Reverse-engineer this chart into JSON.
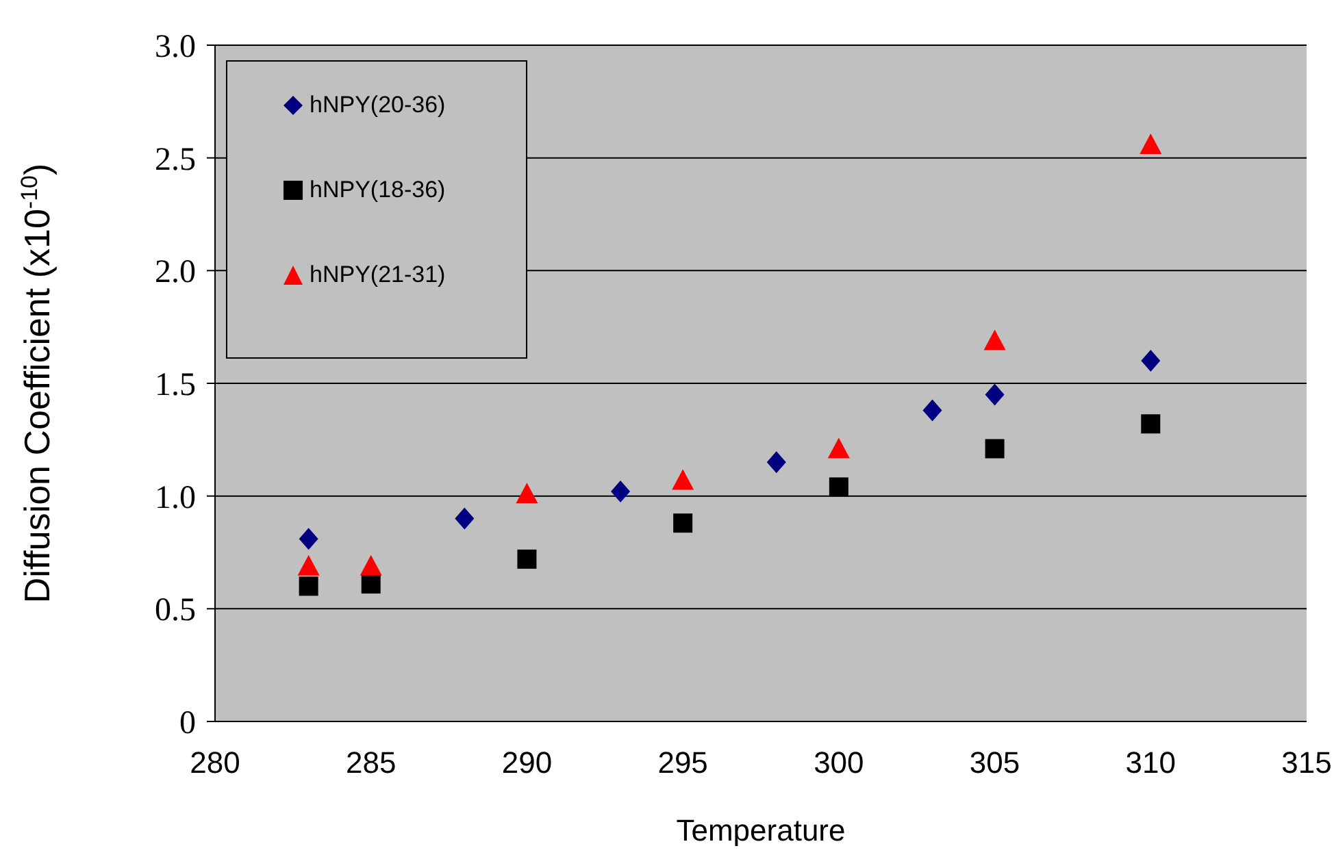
{
  "chart_data": {
    "type": "scatter",
    "xlabel": "Temperature",
    "ylabel": "Diffusion Coefficient (x10$^{-10}$)",
    "xlim": [
      280,
      315
    ],
    "xticks": [
      280,
      285,
      290,
      295,
      300,
      305,
      310,
      315
    ],
    "ylim": [
      0,
      3
    ],
    "yticks": [
      0,
      0.5,
      {
        "value": 1,
        "label": "1.0"
      },
      1.5,
      {
        "value": 2,
        "label": "2.0"
      },
      2.5,
      {
        "value": 3,
        "label": "3.0"
      }
    ],
    "grid": "y",
    "legend": "top left",
    "series": [
      {
        "name": "hNPY(20-36)",
        "color": "#000080",
        "marker": "diamond",
        "x": [
          283,
          288,
          293,
          298,
          303,
          305,
          310
        ],
        "values": [
          0.81,
          0.9,
          1.02,
          1.15,
          1.38,
          1.45,
          1.6
        ]
      },
      {
        "name": "hNPY(18-36)",
        "color": "#000000",
        "marker": "square",
        "x": [
          283,
          285,
          290,
          295,
          300,
          305,
          310
        ],
        "values": [
          0.6,
          0.61,
          0.72,
          0.88,
          1.04,
          1.21,
          1.32
        ]
      },
      {
        "name": "hNPY(21-31)",
        "color": "#ff0000",
        "marker": "triangle",
        "x": [
          283,
          285,
          290,
          295,
          300,
          305,
          310
        ],
        "values": [
          0.69,
          0.69,
          1.01,
          1.07,
          1.21,
          1.69,
          2.56
        ]
      }
    ]
  }
}
